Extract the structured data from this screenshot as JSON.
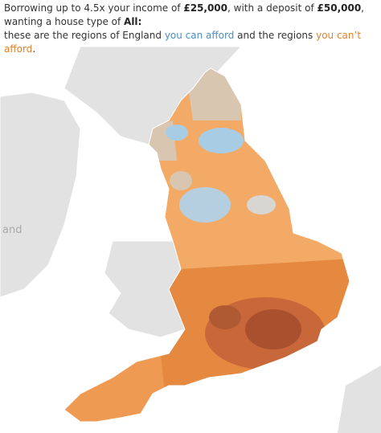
{
  "header": {
    "intro": [
      "Borrowing up to 4.5x your income of ",
      "£25,000",
      ", with a deposit of ",
      "£50,000",
      ", wanting a house type of ",
      "All:"
    ],
    "legend": [
      "these are the regions of England ",
      "you can afford",
      " and the regions ",
      "you can’t afford",
      "."
    ]
  },
  "map": {
    "labels": [
      "and"
    ]
  }
}
